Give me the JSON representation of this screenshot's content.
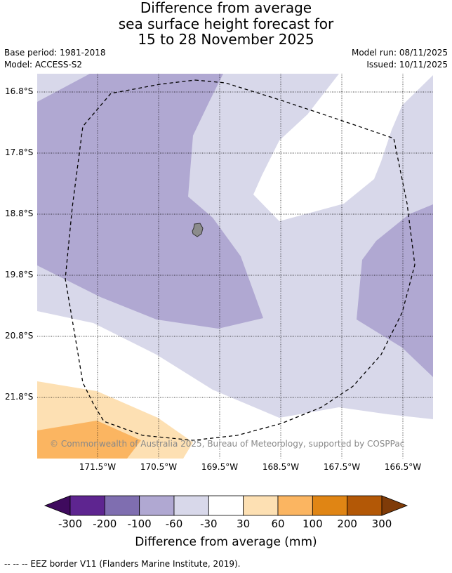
{
  "title": {
    "line1": "Difference from average",
    "line2": "sea surface height forecast for",
    "line3": "15 to 28 November 2025"
  },
  "meta": {
    "base_period": "Base period: 1981-2018",
    "model": "Model: ACCESS-S2",
    "model_run": "Model run: 08/11/2025",
    "issued": "Issued: 10/11/2025"
  },
  "map": {
    "latitudes": [
      "16.8°S",
      "17.8°S",
      "18.8°S",
      "19.8°S",
      "20.8°S",
      "21.8°S"
    ],
    "longitudes": [
      "171.5°W",
      "170.5°W",
      "169.5°W",
      "168.5°W",
      "167.5°W",
      "166.5°W"
    ],
    "copyright": "© Commonwealth of Australia 2025, Bureau of Meteorology, supported by COSPPac",
    "colors": {
      "ocean_white": "#ffffff",
      "lavender_light": "#d8d8ea",
      "lavender_mid": "#b0a8d2",
      "peach_light": "#fde0b3",
      "orange_mid": "#fbb561",
      "island": "#8c8c8c"
    }
  },
  "colorbar": {
    "ticks": [
      "-300",
      "-200",
      "-100",
      "-60",
      "-30",
      "30",
      "60",
      "100",
      "200",
      "300"
    ],
    "colors": [
      "#3f0a5e",
      "#5e2590",
      "#7f6eb0",
      "#b0a8d2",
      "#d8d8ea",
      "#ffffff",
      "#fde0b3",
      "#fbb561",
      "#e08514",
      "#b35806",
      "#7f3b08"
    ],
    "label": "Difference from average (mm)"
  },
  "footnote": "--  --  -- EEZ border V11 (Flanders Marine Institute, 2019)."
}
